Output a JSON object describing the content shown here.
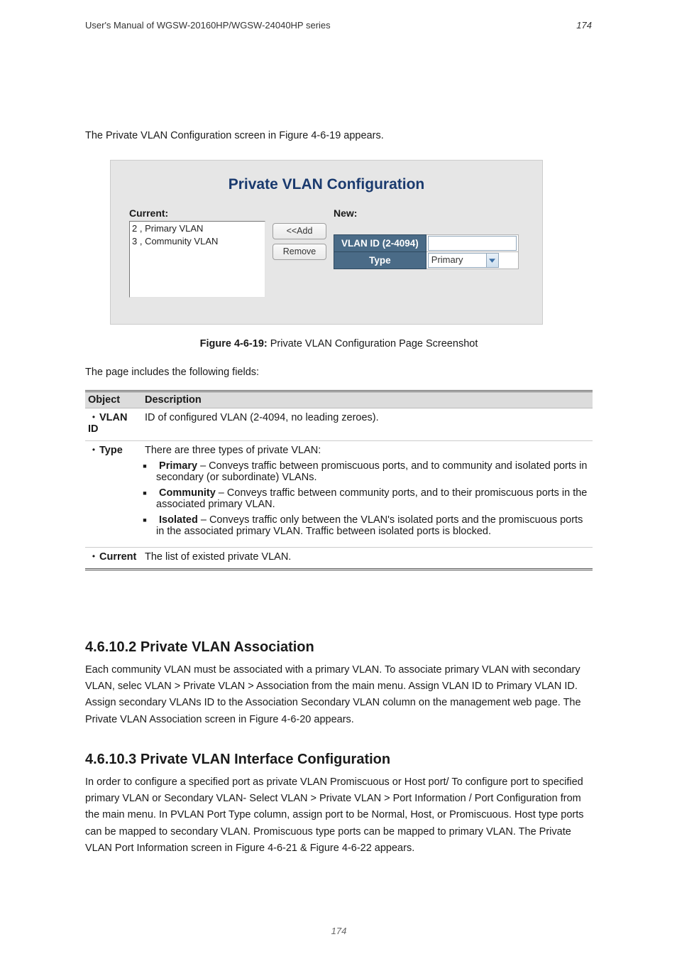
{
  "page": {
    "top_manual_ref": "User's Manual of WGSW-20160HP/WGSW-24040HP series",
    "top_page_number": "174",
    "footer": "174"
  },
  "intro": "The Private VLAN Configuration screen in Figure 4-6-19 appears.",
  "figure": {
    "title": "Private VLAN Configuration",
    "current_label": "Current:",
    "new_label": "New:",
    "list_items": [
      "2 , Primary VLAN",
      "3 , Community VLAN"
    ],
    "buttons": {
      "add": "<<Add",
      "remove": "Remove"
    },
    "headers": {
      "vlan_id": "VLAN ID (2-4094)",
      "type": "Type"
    },
    "select_value": "Primary",
    "select_icon_color": "#3a6ea5",
    "header_bg": "#4a6b87",
    "header_text": "#ffffff"
  },
  "caption": {
    "bold": "Figure 4-6-19:",
    "rest": " Private VLAN Configuration Page Screenshot"
  },
  "page_ref": "The page includes the following fields:",
  "table": {
    "columns": [
      "Object",
      "Description"
    ],
    "rows": [
      {
        "object": "VLAN ID",
        "desc": "ID of configured VLAN (2-4094, no leading zeroes)."
      },
      {
        "object": "Type",
        "desc_lead": "There are three types of private VLAN:",
        "items": [
          {
            "name": "Primary",
            "text": " – Conveys traffic between promiscuous ports, and to community and isolated ports in secondary (or subordinate) VLANs."
          },
          {
            "name": "Community",
            "text": " – Conveys traffic between community ports, and to their promiscuous ports in the associated primary VLAN."
          },
          {
            "name": "Isolated",
            "text": " – Conveys traffic only between the VLAN's isolated ports and the promiscuous ports in the associated primary VLAN. Traffic between isolated ports is blocked."
          }
        ]
      },
      {
        "object": "Current",
        "desc": "The list of existed private VLAN."
      }
    ]
  },
  "sections": {
    "assoc": {
      "heading": "4.6.10.2 Private VLAN Association",
      "body": "Each community VLAN must be associated with a primary VLAN. To associate primary VLAN with secondary VLAN, selec VLAN > Private VLAN > Association from the main menu. Assign VLAN ID to Primary VLAN ID. Assign secondary VLANs ID to the Association Secondary VLAN column on the management web page. The Private VLAN Association screen in Figure 4-6-20 appears."
    },
    "iftype": {
      "heading": "4.6.10.3 Private VLAN Interface Configuration",
      "body": "In order to configure a specified port as private VLAN Promiscuous or Host port/ To configure port to specified primary VLAN or Secondary VLAN- Select VLAN > Private VLAN > Port Information / Port Configuration from the main menu. In PVLAN Port Type column, assign port to be Normal, Host, or Promiscuous. Host type ports can be mapped to secondary VLAN. Promiscuous type ports can be mapped to primary VLAN. The Private VLAN Port Information screen in Figure 4-6-21 & Figure 4-6-22 appears."
    }
  },
  "styles": {
    "page_bg": "#ffffff",
    "figure_bg": "#e6e6e6",
    "title_color": "#1a3a6e",
    "table_header_bg": "#dcdcdc"
  }
}
